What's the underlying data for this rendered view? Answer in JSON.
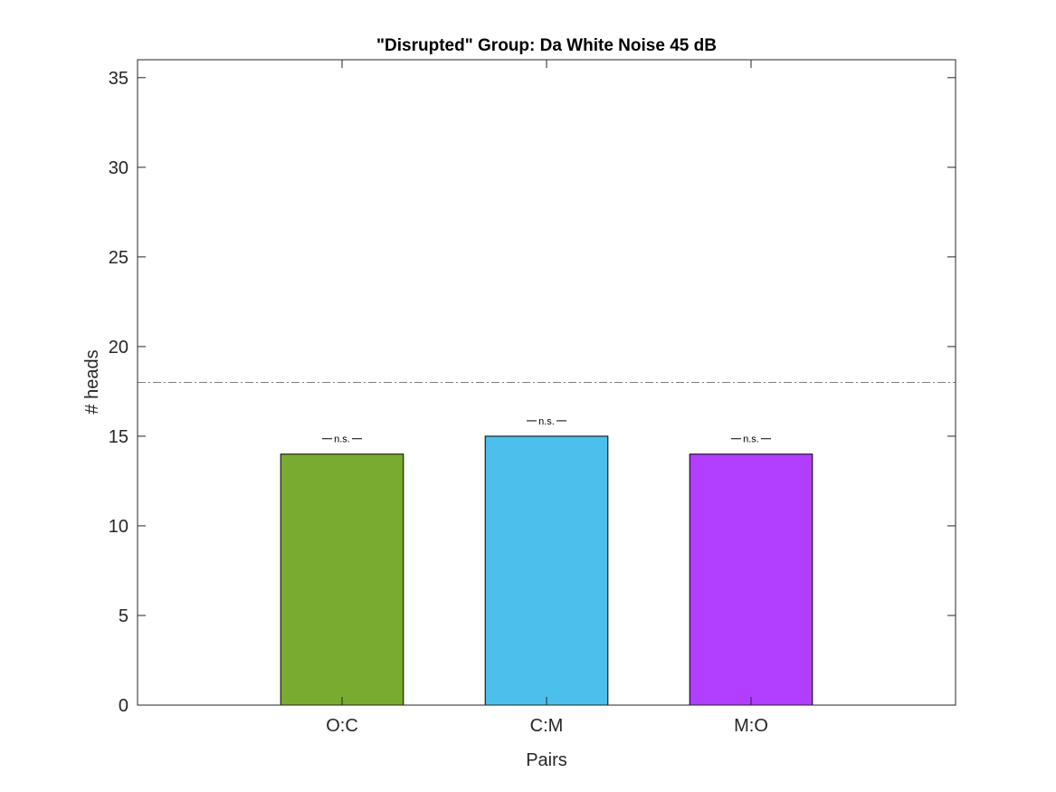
{
  "chart_data": {
    "type": "bar",
    "title": "\"Disrupted\" Group: Da White Noise 45 dB",
    "xlabel": "Pairs",
    "ylabel": "# heads",
    "categories": [
      "O:C",
      "C:M",
      "M:O"
    ],
    "values": [
      14,
      15,
      14
    ],
    "bar_colors": [
      "#7aab31",
      "#4dbfec",
      "#b23eff"
    ],
    "significance_labels": [
      "n.s.",
      "n.s.",
      "n.s."
    ],
    "reference_line": {
      "y": 18,
      "style": "dash-dot",
      "color": "#7f7f7f"
    },
    "ylim": [
      0,
      36
    ],
    "yticks": [
      0,
      5,
      10,
      15,
      20,
      25,
      30,
      35
    ],
    "xlim": [
      0.3,
      4.3
    ],
    "grid": false,
    "legend": "none"
  }
}
